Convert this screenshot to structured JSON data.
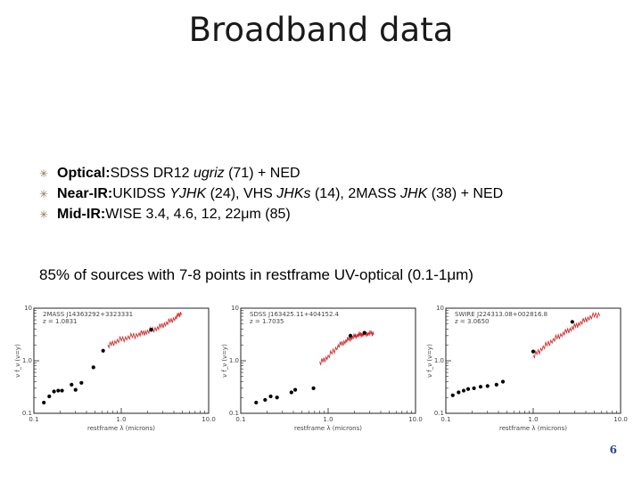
{
  "slide": {
    "title": "Broadband data",
    "bullets": [
      {
        "label": "Optical:",
        "parts": [
          {
            "t": " SDSS DR12 ",
            "i": false
          },
          {
            "t": "ugriz",
            "i": true
          },
          {
            "t": " (71) + NED",
            "i": false
          }
        ]
      },
      {
        "label": "Near-IR:",
        "parts": [
          {
            "t": " UKIDSS ",
            "i": false
          },
          {
            "t": "YJHK",
            "i": true
          },
          {
            "t": " (24), VHS ",
            "i": false
          },
          {
            "t": "JHKs",
            "i": true
          },
          {
            "t": " (14), 2MASS ",
            "i": false
          },
          {
            "t": "JHK",
            "i": true
          },
          {
            "t": " (38) + NED",
            "i": false
          }
        ]
      },
      {
        "label": "Mid-IR:",
        "parts": [
          {
            "t": " WISE 3.4, 4.6, 12, 22μm (85)",
            "i": false
          }
        ]
      }
    ],
    "summary": "85% of sources with 7-8 points in restframe UV-optical (0.1-1μm)",
    "page_number": "6",
    "colors": {
      "bullet_star": "#8a7a55",
      "spectrum": "#cc2020",
      "page_number": "#2b4a8a"
    }
  },
  "chart_data": [
    {
      "type": "scatter",
      "title": "2MASS J14363292+3323331",
      "subtitle": "z = 1.0831",
      "xlabel": "restframe λ (microns)",
      "ylabel": "ν f_ν (ν=y)",
      "xscale": "log",
      "yscale": "log",
      "xlim": [
        0.1,
        10
      ],
      "ylim": [
        0.1,
        10
      ],
      "xticks": [
        "0.1",
        "1.0",
        "10.0"
      ],
      "yticks": [
        "0.1",
        "1.0",
        "10"
      ],
      "points": [
        [
          0.13,
          0.16
        ],
        [
          0.15,
          0.21
        ],
        [
          0.17,
          0.26
        ],
        [
          0.19,
          0.27
        ],
        [
          0.21,
          0.27
        ],
        [
          0.27,
          0.35
        ],
        [
          0.3,
          0.28
        ],
        [
          0.35,
          0.38
        ],
        [
          0.48,
          0.75
        ],
        [
          0.62,
          1.55
        ],
        [
          2.2,
          3.9
        ]
      ],
      "spectrum": {
        "x": [
          0.7,
          0.9,
          1.2,
          1.6,
          2.0,
          2.6,
          3.3,
          4.2,
          5.0
        ],
        "y": [
          1.9,
          2.4,
          2.8,
          3.2,
          3.6,
          4.2,
          5.2,
          6.6,
          8.5
        ]
      }
    },
    {
      "type": "scatter",
      "title": "SDSS J163425.11+404152.4",
      "subtitle": "z = 1.7035",
      "xlabel": "restframe λ (microns)",
      "ylabel": "ν f_ν (ν=y)",
      "xscale": "log",
      "yscale": "log",
      "xlim": [
        0.1,
        10
      ],
      "ylim": [
        0.1,
        10
      ],
      "xticks": [
        "0.1",
        "1.0",
        "10.0"
      ],
      "yticks": [
        "0.1",
        "1.0",
        "10"
      ],
      "points": [
        [
          0.15,
          0.16
        ],
        [
          0.19,
          0.18
        ],
        [
          0.22,
          0.21
        ],
        [
          0.26,
          0.2
        ],
        [
          0.38,
          0.25
        ],
        [
          0.42,
          0.28
        ],
        [
          0.68,
          0.3
        ],
        [
          1.8,
          3.0
        ],
        [
          2.6,
          3.4
        ]
      ],
      "spectrum": {
        "x": [
          0.8,
          1.0,
          1.3,
          1.6,
          1.9,
          2.2,
          2.5,
          2.9,
          3.4
        ],
        "y": [
          0.9,
          1.2,
          1.9,
          2.4,
          2.8,
          3.1,
          3.2,
          3.3,
          3.4
        ]
      }
    },
    {
      "type": "scatter",
      "title": "SWIRE J224313.08+002816.8",
      "subtitle": "z = 3.0650",
      "xlabel": "restframe λ (microns)",
      "ylabel": "ν f_ν (ν=y)",
      "xscale": "log",
      "yscale": "log",
      "xlim": [
        0.1,
        10
      ],
      "ylim": [
        0.1,
        10
      ],
      "xticks": [
        "0.1",
        "1.0",
        "10.0"
      ],
      "yticks": [
        "0.1",
        "1.0",
        "10"
      ],
      "points": [
        [
          0.12,
          0.22
        ],
        [
          0.14,
          0.25
        ],
        [
          0.16,
          0.27
        ],
        [
          0.18,
          0.29
        ],
        [
          0.21,
          0.3
        ],
        [
          0.25,
          0.32
        ],
        [
          0.3,
          0.33
        ],
        [
          0.38,
          0.35
        ],
        [
          0.45,
          0.4
        ],
        [
          1.0,
          1.5
        ],
        [
          2.8,
          5.5
        ]
      ],
      "spectrum": {
        "x": [
          1.0,
          1.3,
          1.7,
          2.2,
          2.8,
          3.5,
          4.5,
          6.0
        ],
        "y": [
          1.2,
          1.8,
          2.5,
          3.3,
          4.2,
          5.3,
          6.8,
          8.0
        ]
      }
    }
  ]
}
